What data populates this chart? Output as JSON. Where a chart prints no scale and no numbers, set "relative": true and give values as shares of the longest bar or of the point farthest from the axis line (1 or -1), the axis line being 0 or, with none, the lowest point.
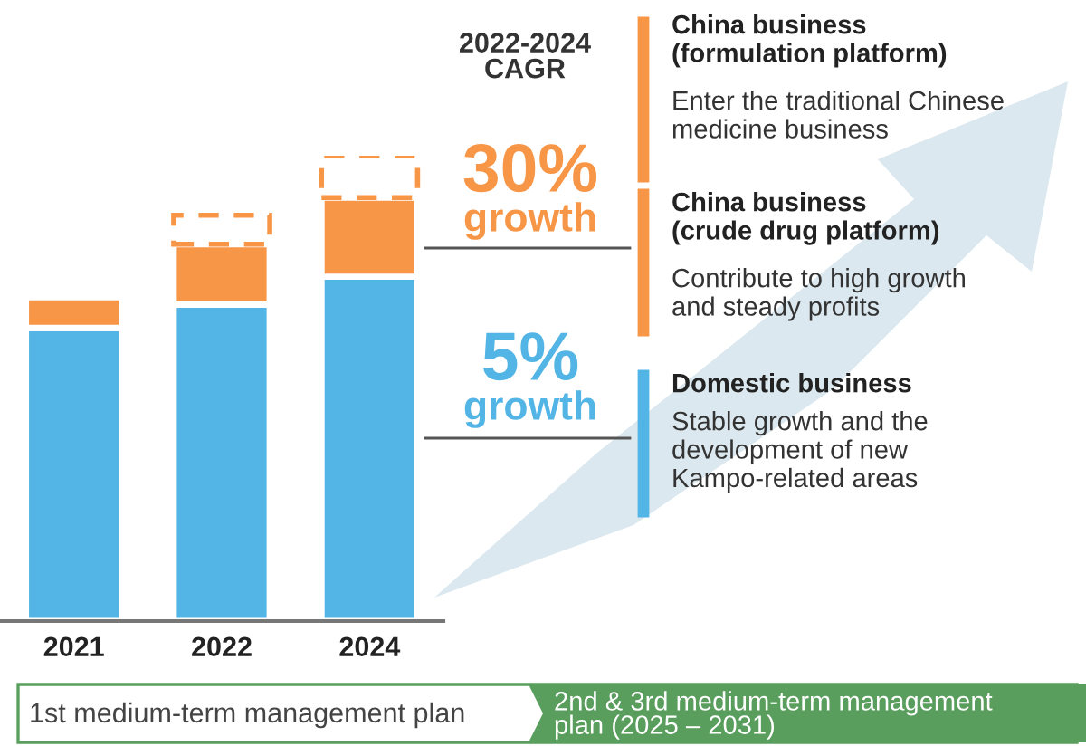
{
  "chart_data": {
    "type": "bar",
    "stacked": true,
    "relative": true,
    "categories": [
      "2021",
      "2022",
      "2024"
    ],
    "series": [
      {
        "color": "#52b5e5",
        "values": [
          0.63,
          0.68,
          0.74
        ]
      },
      {
        "color": "#f79646",
        "values": [
          0.066,
          0.13,
          0.17
        ]
      },
      {
        "color": "#f79646",
        "line_style": "dashed",
        "values": [
          null,
          0.062,
          0.09
        ]
      }
    ],
    "annotations": [
      "2022-2024\nCAGR",
      "30%",
      "growth",
      "5%",
      "growth",
      "China business\n(formulation platform)",
      "Enter the traditional Chinese\nmedicine business",
      "China business\n(crude drug platform)",
      "Contribute to high growth\nand steady profits",
      "Domestic business",
      "Stable growth and the\ndevelopment of new\nKampo-related areas",
      "1st medium-term management plan",
      "2nd & 3rd medium-term management\nplan (2025 – 2031)"
    ]
  }
}
